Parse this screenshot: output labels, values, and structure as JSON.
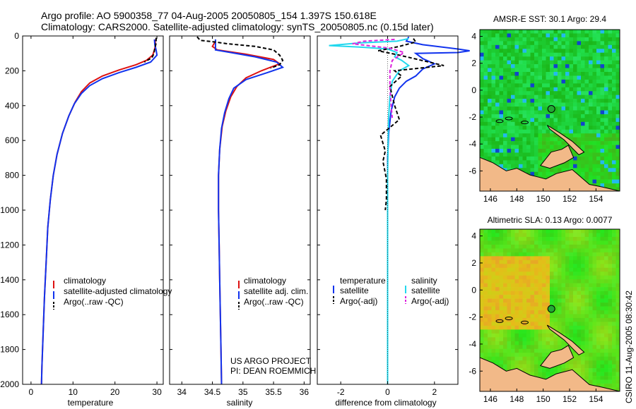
{
  "figure": {
    "title_line1": "Argo profile: AO 5900358_77 04-Aug-2005 20050805_154 1.397S 150.618E",
    "title_line2": "Climatology: CARS2000. Satellite-adjusted climatology: synTS_20050805.nc (0.15d later)",
    "vertical_stamp": "CSIRO 11-Aug-2005 08:30:42",
    "project_line1": "US ARGO PROJECT",
    "project_line2": "PI: DEAN ROEMMICH",
    "colors": {
      "climatology": "#dd1111",
      "satellite": "#1133ee",
      "argo": "#000000",
      "sat_sal": "#22d8ee",
      "argo_sal": "#dd22dd",
      "land": "#f2b988"
    }
  },
  "chart_data": [
    {
      "type": "line",
      "id": "temperature",
      "xlabel": "temperature",
      "xlim": [
        -2,
        31.5
      ],
      "ylim": [
        2000,
        0
      ],
      "xticks": [
        0,
        10,
        20,
        30
      ],
      "yticks": [
        0,
        200,
        400,
        600,
        800,
        1000,
        1200,
        1400,
        1600,
        1800,
        2000
      ],
      "legend": [
        "climatology",
        "satellite-adjusted climatology",
        "Argo(..raw -QC)"
      ],
      "series": [
        {
          "name": "climatology",
          "color": "#dd1111",
          "points": [
            [
              29.5,
              20
            ],
            [
              29.7,
              50
            ],
            [
              29.4,
              80
            ],
            [
              29,
              110
            ],
            [
              27.5,
              140
            ],
            [
              25,
              165
            ],
            [
              21,
              195
            ],
            [
              17,
              230
            ],
            [
              14,
              270
            ],
            [
              12,
              320
            ],
            [
              10.5,
              380
            ],
            [
              9,
              460
            ],
            [
              7.5,
              560
            ],
            [
              6.2,
              680
            ],
            [
              5.3,
              800
            ],
            [
              4.6,
              940
            ],
            [
              4,
              1100
            ],
            [
              3.6,
              1300
            ],
            [
              3.2,
              1500
            ],
            [
              2.9,
              1700
            ],
            [
              2.6,
              1900
            ],
            [
              2.5,
              2000
            ]
          ]
        },
        {
          "name": "satellite-adjusted climatology",
          "color": "#1133ee",
          "points": [
            [
              29.4,
              20
            ],
            [
              29.5,
              50
            ],
            [
              29.8,
              80
            ],
            [
              30,
              110
            ],
            [
              28.5,
              150
            ],
            [
              25,
              180
            ],
            [
              21,
              210
            ],
            [
              17,
              245
            ],
            [
              14,
              285
            ],
            [
              12,
              330
            ],
            [
              10.3,
              390
            ],
            [
              9,
              460
            ],
            [
              7.5,
              560
            ],
            [
              6.2,
              680
            ],
            [
              5.3,
              800
            ],
            [
              4.6,
              940
            ],
            [
              4,
              1100
            ],
            [
              3.6,
              1300
            ],
            [
              3.2,
              1500
            ],
            [
              2.9,
              1700
            ],
            [
              2.6,
              1900
            ],
            [
              2.5,
              2000
            ]
          ]
        },
        {
          "name": "Argo(..raw -QC)",
          "color": "#000000",
          "dashed": true,
          "points": [
            [
              29.8,
              10
            ],
            [
              29.8,
              40
            ],
            [
              29.5,
              70
            ],
            [
              29.3,
              100
            ],
            [
              28.8,
              125
            ],
            [
              27,
              150
            ]
          ]
        }
      ]
    },
    {
      "type": "line",
      "id": "salinity",
      "xlabel": "salinity",
      "xlim": [
        33.8,
        36.1
      ],
      "ylim": [
        2000,
        0
      ],
      "xticks": [
        34,
        34.5,
        35,
        35.5,
        36
      ],
      "legend": [
        "climatology",
        "satellite adj. clim.",
        "Argo(..raw -QC)"
      ],
      "series": [
        {
          "name": "climatology",
          "color": "#dd1111",
          "points": [
            [
              34.55,
              30
            ],
            [
              34.5,
              60
            ],
            [
              34.58,
              80
            ],
            [
              35.05,
              105
            ],
            [
              35.5,
              135
            ],
            [
              35.6,
              160
            ],
            [
              35.3,
              200
            ],
            [
              35.05,
              240
            ],
            [
              34.9,
              290
            ],
            [
              34.8,
              350
            ],
            [
              34.72,
              430
            ],
            [
              34.66,
              520
            ],
            [
              34.62,
              650
            ],
            [
              34.6,
              800
            ],
            [
              34.6,
              1000
            ],
            [
              34.61,
              1200
            ],
            [
              34.62,
              1400
            ],
            [
              34.63,
              1600
            ],
            [
              34.64,
              1800
            ],
            [
              34.65,
              2000
            ]
          ]
        },
        {
          "name": "satellite adj. clim.",
          "color": "#1133ee",
          "points": [
            [
              34.55,
              20
            ],
            [
              34.55,
              50
            ],
            [
              34.55,
              80
            ],
            [
              34.8,
              95
            ],
            [
              35.2,
              120
            ],
            [
              35.55,
              150
            ],
            [
              35.65,
              180
            ],
            [
              35.4,
              210
            ],
            [
              35.05,
              250
            ],
            [
              34.85,
              300
            ],
            [
              34.77,
              360
            ],
            [
              34.7,
              440
            ],
            [
              34.65,
              530
            ],
            [
              34.62,
              650
            ],
            [
              34.6,
              800
            ],
            [
              34.6,
              1000
            ],
            [
              34.61,
              1200
            ],
            [
              34.62,
              1400
            ],
            [
              34.63,
              1600
            ],
            [
              34.64,
              1800
            ],
            [
              34.65,
              2000
            ]
          ]
        },
        {
          "name": "Argo(..raw -QC)",
          "color": "#000000",
          "dashed": true,
          "points": [
            [
              34.25,
              5
            ],
            [
              34.3,
              25
            ],
            [
              34.55,
              35
            ],
            [
              34.75,
              45
            ],
            [
              35.2,
              60
            ],
            [
              35.5,
              80
            ],
            [
              35.6,
              110
            ],
            [
              35.65,
              140
            ],
            [
              35.6,
              165
            ],
            [
              35.45,
              185
            ]
          ]
        }
      ]
    },
    {
      "type": "line",
      "id": "difference",
      "xlabel": "difference from climatology",
      "xlim": [
        -3,
        3
      ],
      "ylim": [
        2000,
        0
      ],
      "xticks": [
        -2,
        0,
        2
      ],
      "legend_temperature_title": "temperature",
      "legend_salinity_title": "salinity",
      "legend_temperature": [
        "satellite",
        "Argo(-adj)"
      ],
      "legend_salinity": [
        "satellite",
        "Argo(-adj)"
      ],
      "series": [
        {
          "name": "temperature satellite",
          "color": "#1133ee",
          "points": [
            [
              0.9,
              5
            ],
            [
              0.8,
              30
            ],
            [
              1.5,
              50
            ],
            [
              3,
              75
            ],
            [
              3.5,
              85
            ],
            [
              3,
              95
            ],
            [
              1.2,
              100
            ],
            [
              1.5,
              130
            ],
            [
              2,
              160
            ],
            [
              1.5,
              190
            ],
            [
              1.2,
              230
            ],
            [
              0.8,
              260
            ],
            [
              0.5,
              300
            ],
            [
              0.3,
              350
            ],
            [
              0.15,
              430
            ],
            [
              0.05,
              550
            ],
            [
              0,
              700
            ],
            [
              0,
              900
            ],
            [
              0,
              1200
            ],
            [
              0,
              1500
            ],
            [
              0,
              1800
            ],
            [
              0,
              2000
            ]
          ]
        },
        {
          "name": "salinity satellite",
          "color": "#22d8ee",
          "points": [
            [
              0.9,
              15
            ],
            [
              0.4,
              30
            ],
            [
              -1.2,
              40
            ],
            [
              -2.5,
              55
            ],
            [
              -1,
              65
            ],
            [
              0,
              75
            ],
            [
              0.4,
              95
            ],
            [
              0.3,
              120
            ],
            [
              0.6,
              140
            ],
            [
              0.9,
              170
            ],
            [
              0.5,
              200
            ],
            [
              0.2,
              260
            ],
            [
              0.1,
              350
            ],
            [
              0.05,
              450
            ],
            [
              0.02,
              600
            ],
            [
              0,
              800
            ],
            [
              0,
              1000
            ],
            [
              0,
              1300
            ],
            [
              0,
              1600
            ],
            [
              0,
              2000
            ]
          ]
        },
        {
          "name": "temperature Argo(-adj)",
          "color": "#000000",
          "dashed": true,
          "points": [
            [
              1.1,
              15
            ],
            [
              1.2,
              35
            ],
            [
              0.5,
              60
            ],
            [
              -0.4,
              85
            ],
            [
              0.5,
              110
            ],
            [
              2.4,
              170
            ],
            [
              0.3,
              200
            ],
            [
              0.6,
              230
            ],
            [
              0.1,
              290
            ],
            [
              0.3,
              400
            ],
            [
              0.5,
              480
            ],
            [
              -0.3,
              570
            ],
            [
              -0.1,
              660
            ],
            [
              -0.2,
              720
            ],
            [
              -0.05,
              820
            ],
            [
              -0.05,
              940
            ],
            [
              -0.1,
              1000
            ]
          ]
        },
        {
          "name": "salinity Argo(-adj)",
          "color": "#dd22dd",
          "dashed": true,
          "points": [
            [
              0.3,
              20
            ],
            [
              -1,
              30
            ],
            [
              -1.5,
              45
            ],
            [
              0.1,
              70
            ],
            [
              0.7,
              95
            ],
            [
              0.2,
              140
            ],
            [
              0.1,
              200
            ],
            [
              0.1,
              300
            ],
            [
              0.15,
              400
            ],
            [
              0.2,
              470
            ]
          ]
        }
      ]
    },
    {
      "type": "heatmap",
      "id": "amsr",
      "title": "AMSR-E SST: 30.1 Argo: 29.4",
      "xlim": [
        145.2,
        155.8
      ],
      "ylim": [
        -7.5,
        4.5
      ],
      "xticks": [
        146,
        148,
        150,
        152,
        154
      ],
      "yticks": [
        4,
        2,
        0,
        -2,
        -4,
        -6
      ],
      "float_position": [
        150.618,
        -1.397
      ]
    },
    {
      "type": "heatmap",
      "id": "altimetric",
      "title": "Altimetric SLA: 0.13 Argo: 0.0077",
      "xlim": [
        145.2,
        155.8
      ],
      "ylim": [
        -7.5,
        4.5
      ],
      "xticks": [
        146,
        148,
        150,
        152,
        154
      ],
      "yticks": [
        4,
        2,
        0,
        -2,
        -4,
        -6
      ],
      "float_position": [
        150.618,
        -1.397
      ]
    }
  ]
}
